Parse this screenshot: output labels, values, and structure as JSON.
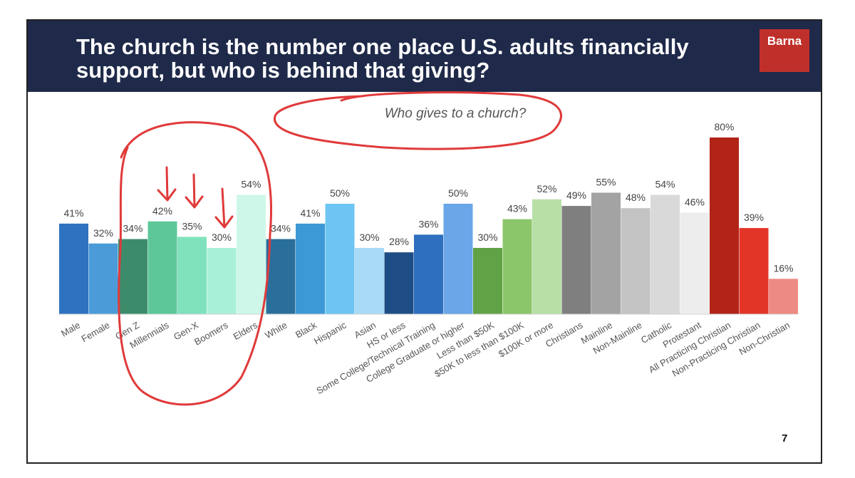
{
  "slide": {
    "title": "The church is the number one place U.S. adults financially support, but who is behind that giving?",
    "logo": "Barna",
    "page_number": "7"
  },
  "chart_data": {
    "type": "bar",
    "title": "Who gives to a church?",
    "categories": [
      "Male",
      "Female",
      "Gen Z",
      "Millennials",
      "Gen-X",
      "Boomers",
      "Elders",
      "White",
      "Black",
      "Hispanic",
      "Asian",
      "HS or less",
      "Some College/Technical Training",
      "College Graduate or higher",
      "Less than $50K",
      "$50K to less than $100K",
      "$100K or more",
      "Christians",
      "Mainline",
      "Non-Mainline",
      "Catholic",
      "Protestant",
      "All Practicing Christian",
      "Non-Practicing Christian",
      "Non-Christian"
    ],
    "values": [
      41,
      32,
      34,
      42,
      35,
      30,
      54,
      34,
      41,
      50,
      30,
      28,
      36,
      50,
      30,
      43,
      52,
      49,
      55,
      48,
      54,
      46,
      80,
      39,
      16
    ],
    "value_labels": [
      "41%",
      "32%",
      "34%",
      "42%",
      "35%",
      "30%",
      "54%",
      "34%",
      "41%",
      "50%",
      "30%",
      "28%",
      "36%",
      "50%",
      "30%",
      "43%",
      "52%",
      "49%",
      "55%",
      "48%",
      "54%",
      "46%",
      "80%",
      "39%",
      "16%"
    ],
    "colors": [
      "#2e72c0",
      "#4a9bd8",
      "#3c8c6c",
      "#5dc79a",
      "#80e2bd",
      "#a8f0d8",
      "#cef7ea",
      "#2a6f9c",
      "#3d99d6",
      "#6cc5f3",
      "#a8dbf6",
      "#1e4d86",
      "#2e6fbf",
      "#6aa6e8",
      "#62a247",
      "#8cc66a",
      "#b7dfa6",
      "#7f7f7f",
      "#a3a3a3",
      "#c3c3c3",
      "#d9d9d9",
      "#ededed",
      "#b22418",
      "#e23527",
      "#ee8a84"
    ],
    "ylim": [
      0,
      80
    ],
    "grid": false,
    "legend": "none"
  }
}
